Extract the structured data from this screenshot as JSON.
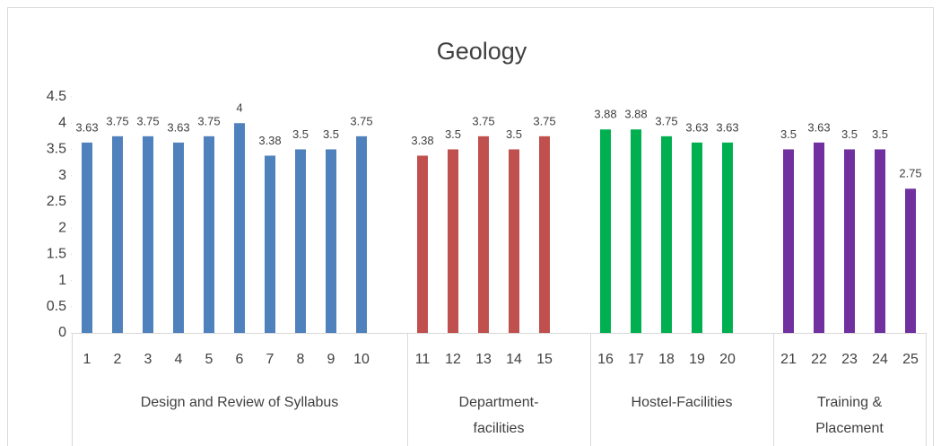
{
  "chart_data": {
    "type": "bar",
    "title": "Geology",
    "ylim": [
      0,
      4.5
    ],
    "yticks": [
      0,
      0.5,
      1,
      1.5,
      2,
      2.5,
      3,
      3.5,
      4,
      4.5
    ],
    "groups": [
      {
        "label": "Design and Review of Syllabus",
        "color": "#4f81bd",
        "categories": [
          "1",
          "2",
          "3",
          "4",
          "5",
          "6",
          "7",
          "8",
          "9",
          "10"
        ],
        "values": [
          3.63,
          3.75,
          3.75,
          3.63,
          3.75,
          4,
          3.38,
          3.5,
          3.5,
          3.75
        ]
      },
      {
        "label": "Department-facilities",
        "color": "#c0504d",
        "categories": [
          "11",
          "12",
          "13",
          "14",
          "15"
        ],
        "values": [
          3.38,
          3.5,
          3.75,
          3.5,
          3.75
        ]
      },
      {
        "label": "Hostel-Facilities",
        "color": "#00b050",
        "categories": [
          "16",
          "17",
          "18",
          "19",
          "20"
        ],
        "values": [
          3.88,
          3.88,
          3.75,
          3.63,
          3.63
        ]
      },
      {
        "label": "Training & Placement",
        "color": "#7030a0",
        "categories": [
          "21",
          "22",
          "23",
          "24",
          "25"
        ],
        "values": [
          3.5,
          3.63,
          3.5,
          3.5,
          2.75
        ]
      }
    ]
  }
}
